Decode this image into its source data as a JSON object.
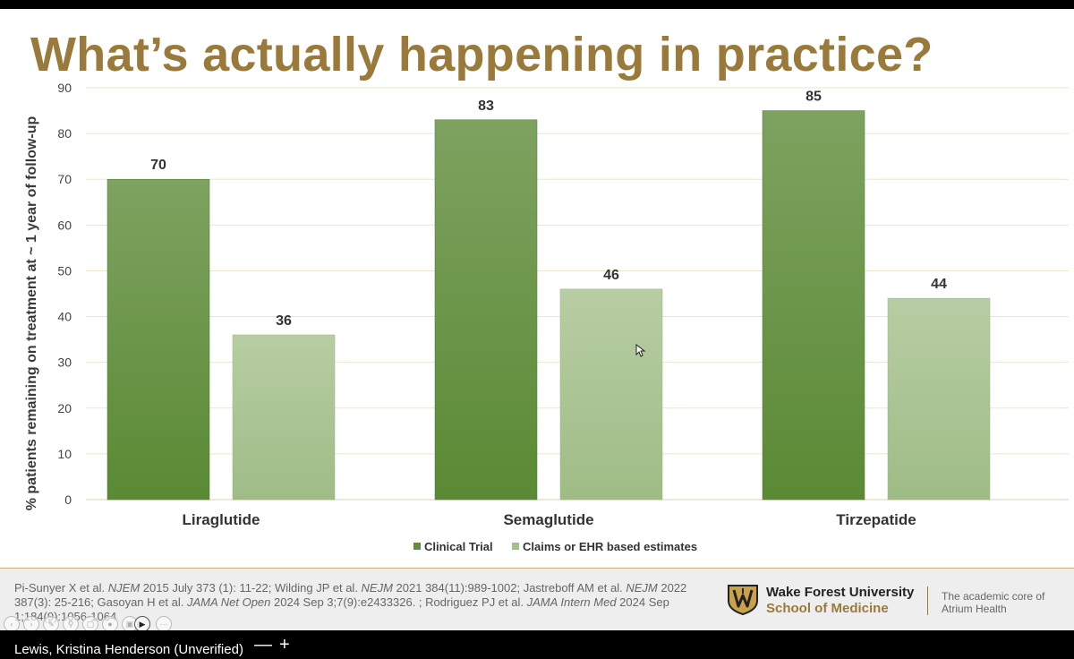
{
  "slide": {
    "title": "What’s actually happening in practice?"
  },
  "chart_data": {
    "type": "bar",
    "categories": [
      "Liraglutide",
      "Semaglutide",
      "Tirzepatide"
    ],
    "series": [
      {
        "name": "Clinical Trial",
        "values": [
          70,
          83,
          85
        ],
        "color": "#5f8f3e"
      },
      {
        "name": "Claims or EHR based estimates",
        "values": [
          36,
          46,
          44
        ],
        "color": "#a3bf8a"
      }
    ],
    "ylabel": "% patients remaining on treatment at ~ 1 year of follow-up",
    "xlabel": "",
    "ylim": [
      0,
      90
    ],
    "yticks": [
      0,
      10,
      20,
      30,
      40,
      50,
      60,
      70,
      80,
      90
    ],
    "grid": true,
    "data_labels": true,
    "legend_position": "bottom-center"
  },
  "footer": {
    "refs": [
      {
        "text": "Pi-Sunyer X et al. ",
        "italic": false
      },
      {
        "text": "NJEM",
        "italic": true
      },
      {
        "text": "  2015 July 373 (1): 11-22; Wilding JP et al. ",
        "italic": false
      },
      {
        "text": "NEJM",
        "italic": true
      },
      {
        "text": " 2021 384(11):989-1002; Jastreboff AM et al. ",
        "italic": false
      },
      {
        "text": "NEJM",
        "italic": true
      },
      {
        "text": " 2022 387(3): 25-216; Gasoyan H et al.  ",
        "italic": false
      },
      {
        "text": "JAMA Net Open",
        "italic": true
      },
      {
        "text": " 2024 Sep 3;7(9):e2433326. ; Rodriguez PJ et al. ",
        "italic": false
      },
      {
        "text": "JAMA Intern Med",
        "italic": true
      },
      {
        "text": "  2024 Sep 1;184(9):1056-1064",
        "italic": false
      }
    ],
    "institution": "Wake Forest University",
    "school": "School of Medicine",
    "tagline": "The academic core of Atrium Health"
  },
  "call_bar": {
    "participant": "Lewis, Kristina Henderson (Unverified)",
    "minimize_icon": "minus-icon",
    "add_icon": "plus-icon"
  }
}
